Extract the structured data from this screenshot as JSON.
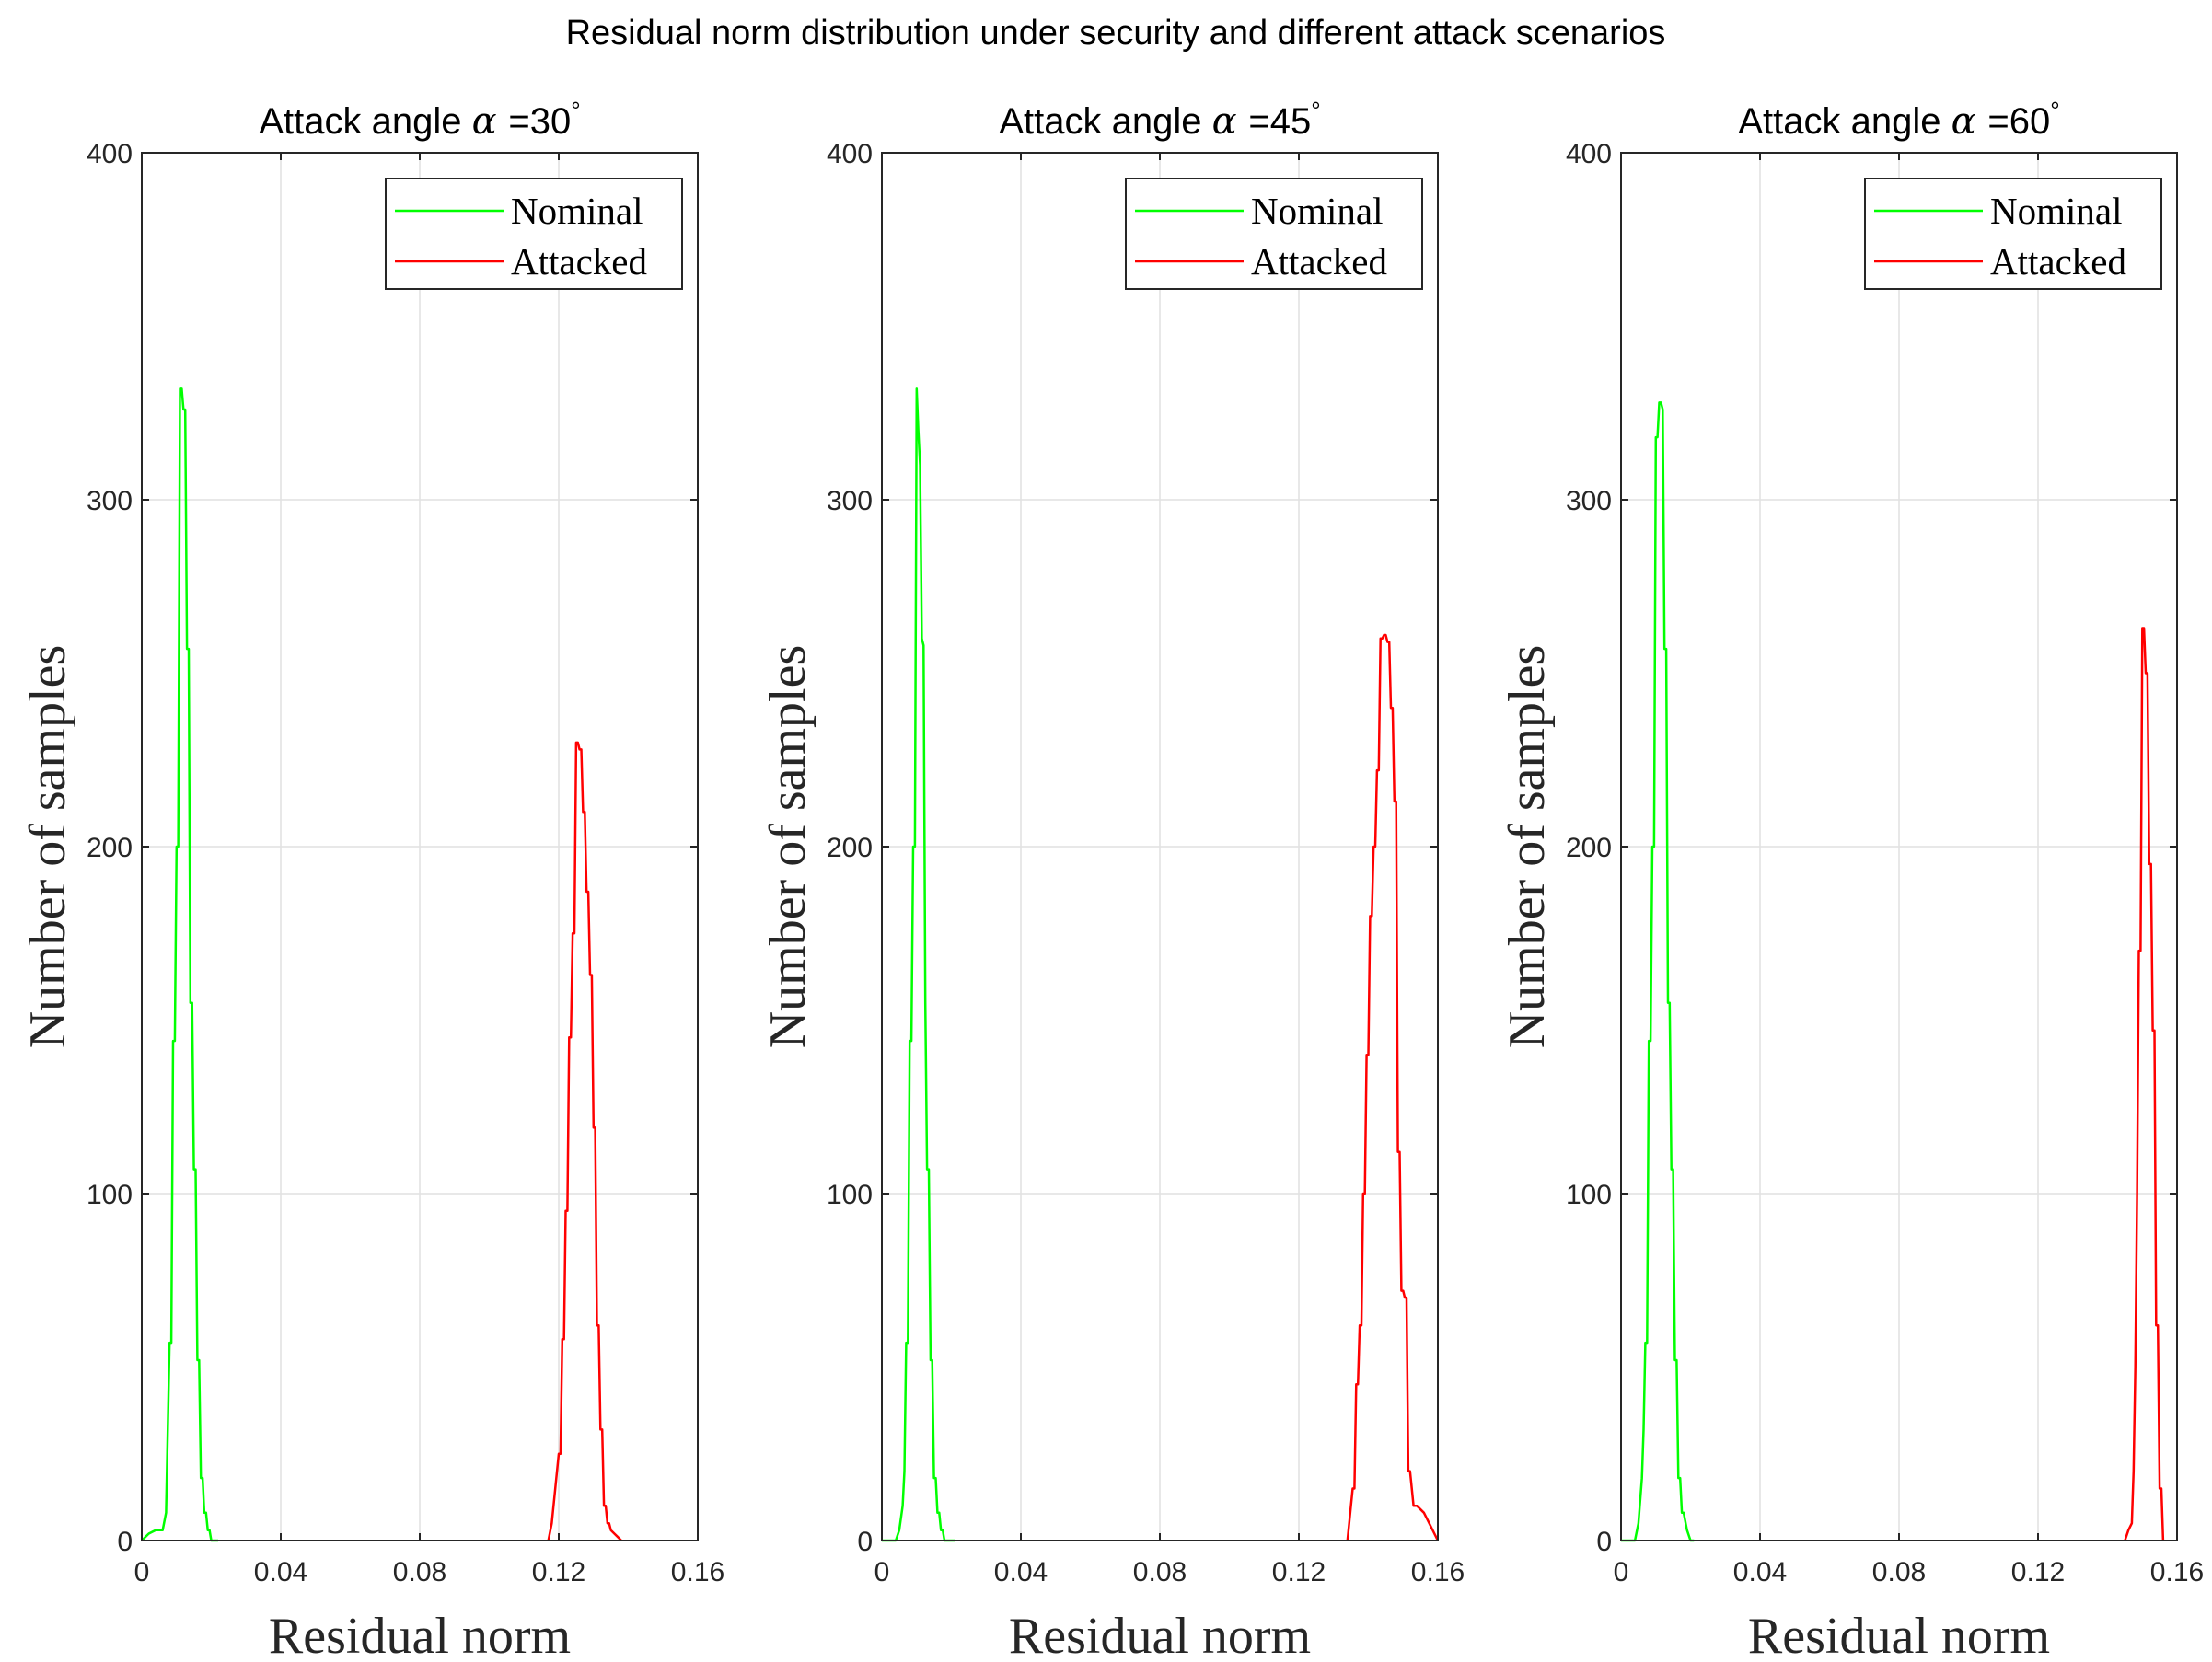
{
  "suptitle": "Residual norm distribution under security and different attack scenarios",
  "legend_labels": [
    "Nominal",
    "Attacked"
  ],
  "colors": {
    "nominal": "#00ff00",
    "attacked": "#ff0000",
    "grid": "#e1e1e1",
    "axis": "#262626"
  },
  "chart_data": [
    {
      "type": "line",
      "title_prefix": "Attack angle ",
      "title_symbol": "α",
      "title_value": "=30",
      "title_degree": "°",
      "xlabel": "Residual norm",
      "ylabel": "Number of samples",
      "xlim": [
        0,
        0.16
      ],
      "ylim": [
        0,
        400
      ],
      "xticks": [
        0,
        0.04,
        0.08,
        0.12,
        0.16
      ],
      "xtick_labels": [
        "0",
        "0.04",
        "0.08",
        "0.12",
        "0.16"
      ],
      "yticks": [
        0,
        100,
        200,
        300,
        400
      ],
      "ytick_labels": [
        "0",
        "100",
        "200",
        "300",
        "400"
      ],
      "grid": true,
      "legend_position": "top-right",
      "series": [
        {
          "name": "Nominal",
          "color_key": "nominal",
          "x": [
            0.0,
            0.002,
            0.004,
            0.006,
            0.007,
            0.008,
            0.0085,
            0.009,
            0.0095,
            0.01,
            0.0105,
            0.011,
            0.0115,
            0.012,
            0.0125,
            0.013,
            0.0135,
            0.014,
            0.0145,
            0.015,
            0.0155,
            0.016,
            0.0165,
            0.017,
            0.0175,
            0.018,
            0.0185,
            0.019,
            0.0195,
            0.02,
            0.021,
            0.022
          ],
          "y": [
            0,
            2,
            3,
            3,
            8,
            57,
            57,
            144,
            144,
            200,
            200,
            332,
            332,
            326,
            326,
            257,
            257,
            155,
            155,
            107,
            107,
            52,
            52,
            18,
            18,
            8,
            8,
            3,
            3,
            0,
            0,
            0
          ]
        },
        {
          "name": "Attacked",
          "color_key": "attacked",
          "x": [
            0.117,
            0.118,
            0.119,
            0.12,
            0.1205,
            0.121,
            0.1215,
            0.122,
            0.1225,
            0.123,
            0.1235,
            0.124,
            0.1245,
            0.125,
            0.1255,
            0.126,
            0.1265,
            0.127,
            0.1275,
            0.128,
            0.1285,
            0.129,
            0.1295,
            0.13,
            0.1305,
            0.131,
            0.1315,
            0.132,
            0.1325,
            0.133,
            0.1335,
            0.134,
            0.1345,
            0.135,
            0.136,
            0.137,
            0.138
          ],
          "y": [
            0,
            5,
            15,
            25,
            25,
            58,
            58,
            95,
            95,
            145,
            145,
            175,
            175,
            230,
            230,
            228,
            228,
            210,
            210,
            187,
            187,
            163,
            163,
            119,
            119,
            62,
            62,
            32,
            32,
            10,
            10,
            5,
            5,
            3,
            2,
            1,
            0
          ]
        }
      ]
    },
    {
      "type": "line",
      "title_prefix": "Attack angle ",
      "title_symbol": "α",
      "title_value": "=45",
      "title_degree": "°",
      "xlabel": "Residual norm",
      "ylabel": "Number of samples",
      "xlim": [
        0,
        0.16
      ],
      "ylim": [
        0,
        400
      ],
      "xticks": [
        0,
        0.04,
        0.08,
        0.12,
        0.16
      ],
      "xtick_labels": [
        "0",
        "0.04",
        "0.08",
        "0.12",
        "0.16"
      ],
      "yticks": [
        0,
        100,
        200,
        300,
        400
      ],
      "ytick_labels": [
        "0",
        "100",
        "200",
        "300",
        "400"
      ],
      "grid": true,
      "legend_position": "top-right",
      "series": [
        {
          "name": "Nominal",
          "color_key": "nominal",
          "x": [
            0.0,
            0.004,
            0.005,
            0.006,
            0.0065,
            0.007,
            0.0075,
            0.008,
            0.0085,
            0.009,
            0.0095,
            0.01,
            0.0105,
            0.011,
            0.0115,
            0.012,
            0.0125,
            0.013,
            0.0135,
            0.014,
            0.0145,
            0.015,
            0.0155,
            0.016,
            0.0165,
            0.017,
            0.0175,
            0.018,
            0.019,
            0.02,
            0.021
          ],
          "y": [
            0,
            0,
            3,
            10,
            20,
            57,
            57,
            144,
            144,
            200,
            200,
            332,
            320,
            310,
            260,
            258,
            155,
            107,
            107,
            52,
            52,
            18,
            18,
            8,
            8,
            3,
            3,
            0,
            0,
            0,
            0
          ]
        },
        {
          "name": "Attacked",
          "color_key": "attacked",
          "x": [
            0.134,
            0.135,
            0.1355,
            0.136,
            0.1365,
            0.137,
            0.1375,
            0.138,
            0.1385,
            0.139,
            0.1395,
            0.14,
            0.1405,
            0.141,
            0.1415,
            0.142,
            0.1425,
            0.143,
            0.1435,
            0.144,
            0.1445,
            0.145,
            0.1455,
            0.146,
            0.1465,
            0.147,
            0.1475,
            0.148,
            0.1485,
            0.149,
            0.1495,
            0.15,
            0.1505,
            0.151,
            0.1515,
            0.152,
            0.153,
            0.154,
            0.156,
            0.158,
            0.16
          ],
          "y": [
            0,
            10,
            15,
            15,
            45,
            45,
            62,
            62,
            100,
            100,
            140,
            140,
            180,
            180,
            200,
            200,
            222,
            222,
            260,
            260,
            261,
            261,
            259,
            259,
            240,
            240,
            213,
            213,
            112,
            112,
            72,
            72,
            70,
            70,
            20,
            20,
            10,
            10,
            8,
            4,
            0
          ]
        }
      ]
    },
    {
      "type": "line",
      "title_prefix": "Attack angle ",
      "title_symbol": "α",
      "title_value": "=60",
      "title_degree": "°",
      "xlabel": "Residual norm",
      "ylabel": "Number of samples",
      "xlim": [
        0,
        0.16
      ],
      "ylim": [
        0,
        400
      ],
      "xticks": [
        0,
        0.04,
        0.08,
        0.12,
        0.16
      ],
      "xtick_labels": [
        "0",
        "0.04",
        "0.08",
        "0.12",
        "0.16"
      ],
      "yticks": [
        0,
        100,
        200,
        300,
        400
      ],
      "ytick_labels": [
        "0",
        "100",
        "200",
        "300",
        "400"
      ],
      "grid": true,
      "legend_position": "top-right",
      "series": [
        {
          "name": "Nominal",
          "color_key": "nominal",
          "x": [
            0.0,
            0.004,
            0.005,
            0.006,
            0.0065,
            0.007,
            0.0075,
            0.008,
            0.0085,
            0.009,
            0.0095,
            0.01,
            0.0105,
            0.011,
            0.0115,
            0.012,
            0.0125,
            0.013,
            0.0135,
            0.014,
            0.0145,
            0.015,
            0.0155,
            0.016,
            0.0165,
            0.017,
            0.0175,
            0.018,
            0.019,
            0.02,
            0.021
          ],
          "y": [
            0,
            0,
            5,
            18,
            32,
            57,
            57,
            144,
            144,
            200,
            200,
            318,
            318,
            328,
            328,
            326,
            257,
            257,
            155,
            155,
            107,
            107,
            52,
            52,
            18,
            18,
            8,
            8,
            3,
            0,
            0
          ]
        },
        {
          "name": "Attacked",
          "color_key": "attacked",
          "x": [
            0.145,
            0.146,
            0.147,
            0.1475,
            0.148,
            0.1485,
            0.149,
            0.1495,
            0.15,
            0.1505,
            0.151,
            0.1515,
            0.152,
            0.1525,
            0.153,
            0.1535,
            0.154,
            0.1545,
            0.155,
            0.1555,
            0.156
          ],
          "y": [
            0,
            3,
            5,
            20,
            50,
            100,
            170,
            170,
            263,
            263,
            250,
            250,
            195,
            195,
            147,
            147,
            62,
            62,
            15,
            15,
            0
          ]
        }
      ]
    }
  ]
}
